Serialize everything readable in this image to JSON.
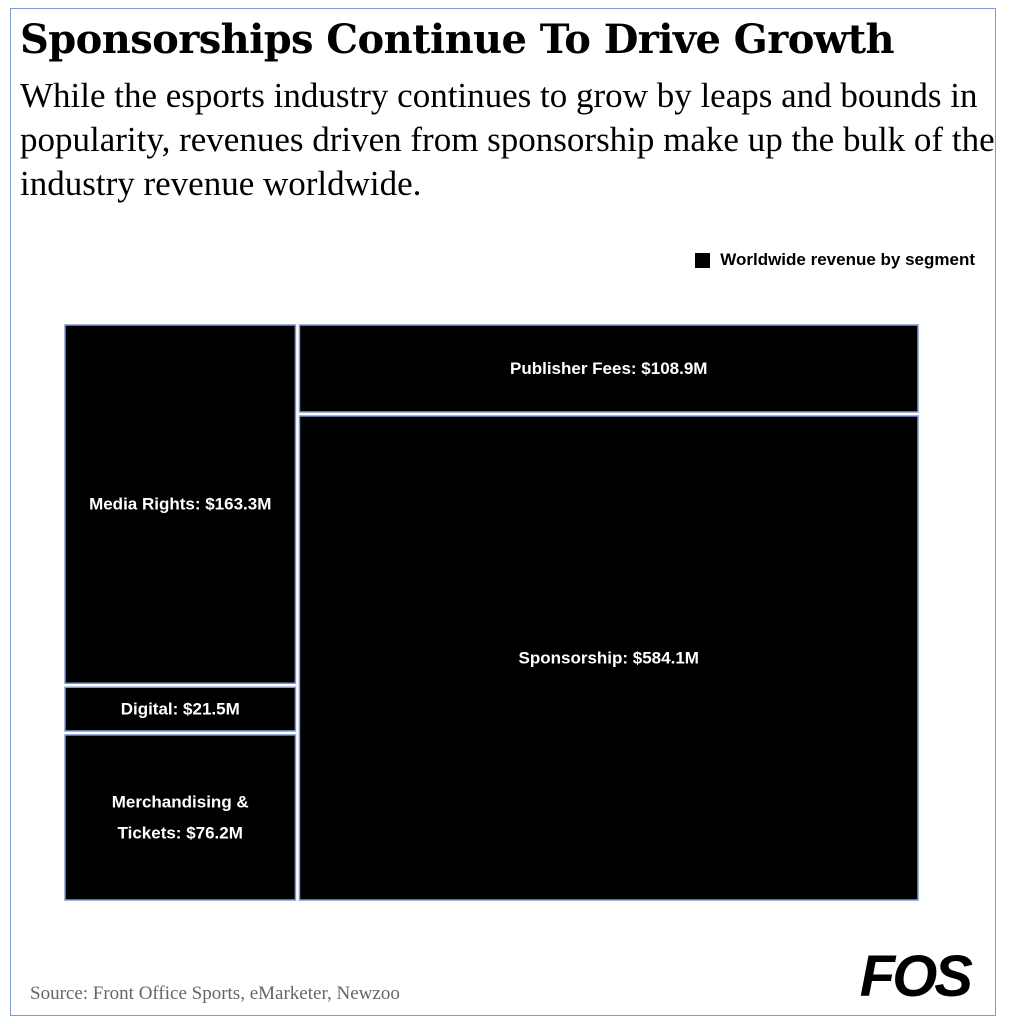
{
  "header": {
    "title": "Sponsorships Continue To Drive Growth",
    "subtitle": "While the esports industry continues to grow by leaps and bounds in popularity, revenues driven from sponsorship make up the bulk of the industry revenue worldwide."
  },
  "legend": {
    "label": "Worldwide revenue by segment"
  },
  "footer": {
    "source": "Source: Front Office Sports, eMarketer, Newzoo",
    "logo": "FOS"
  },
  "colors": {
    "tile_fill": "#000000",
    "tile_border": "#7f9ad6",
    "label_text": "#ffffff",
    "frame_border": "#7f9ad6"
  },
  "chart_data": {
    "type": "treemap",
    "title": "Sponsorships Continue To Drive Growth",
    "legend": [
      "Worldwide revenue by segment"
    ],
    "legend_placement": "top-right",
    "unit": "$M",
    "segments": [
      {
        "name": "Media Rights",
        "value": 163.3,
        "label": [
          "Media Rights: $163.3M"
        ]
      },
      {
        "name": "Digital",
        "value": 21.5,
        "label": [
          "Digital: $21.5M"
        ]
      },
      {
        "name": "Merchandising & Tickets",
        "value": 76.2,
        "label": [
          "Merchandising &",
          "Tickets: $76.2M"
        ]
      },
      {
        "name": "Publisher Fees",
        "value": 108.9,
        "label": [
          "Publisher Fees: $108.9M"
        ]
      },
      {
        "name": "Sponsorship",
        "value": 584.1,
        "label": [
          "Sponsorship: $584.1M"
        ]
      }
    ]
  }
}
